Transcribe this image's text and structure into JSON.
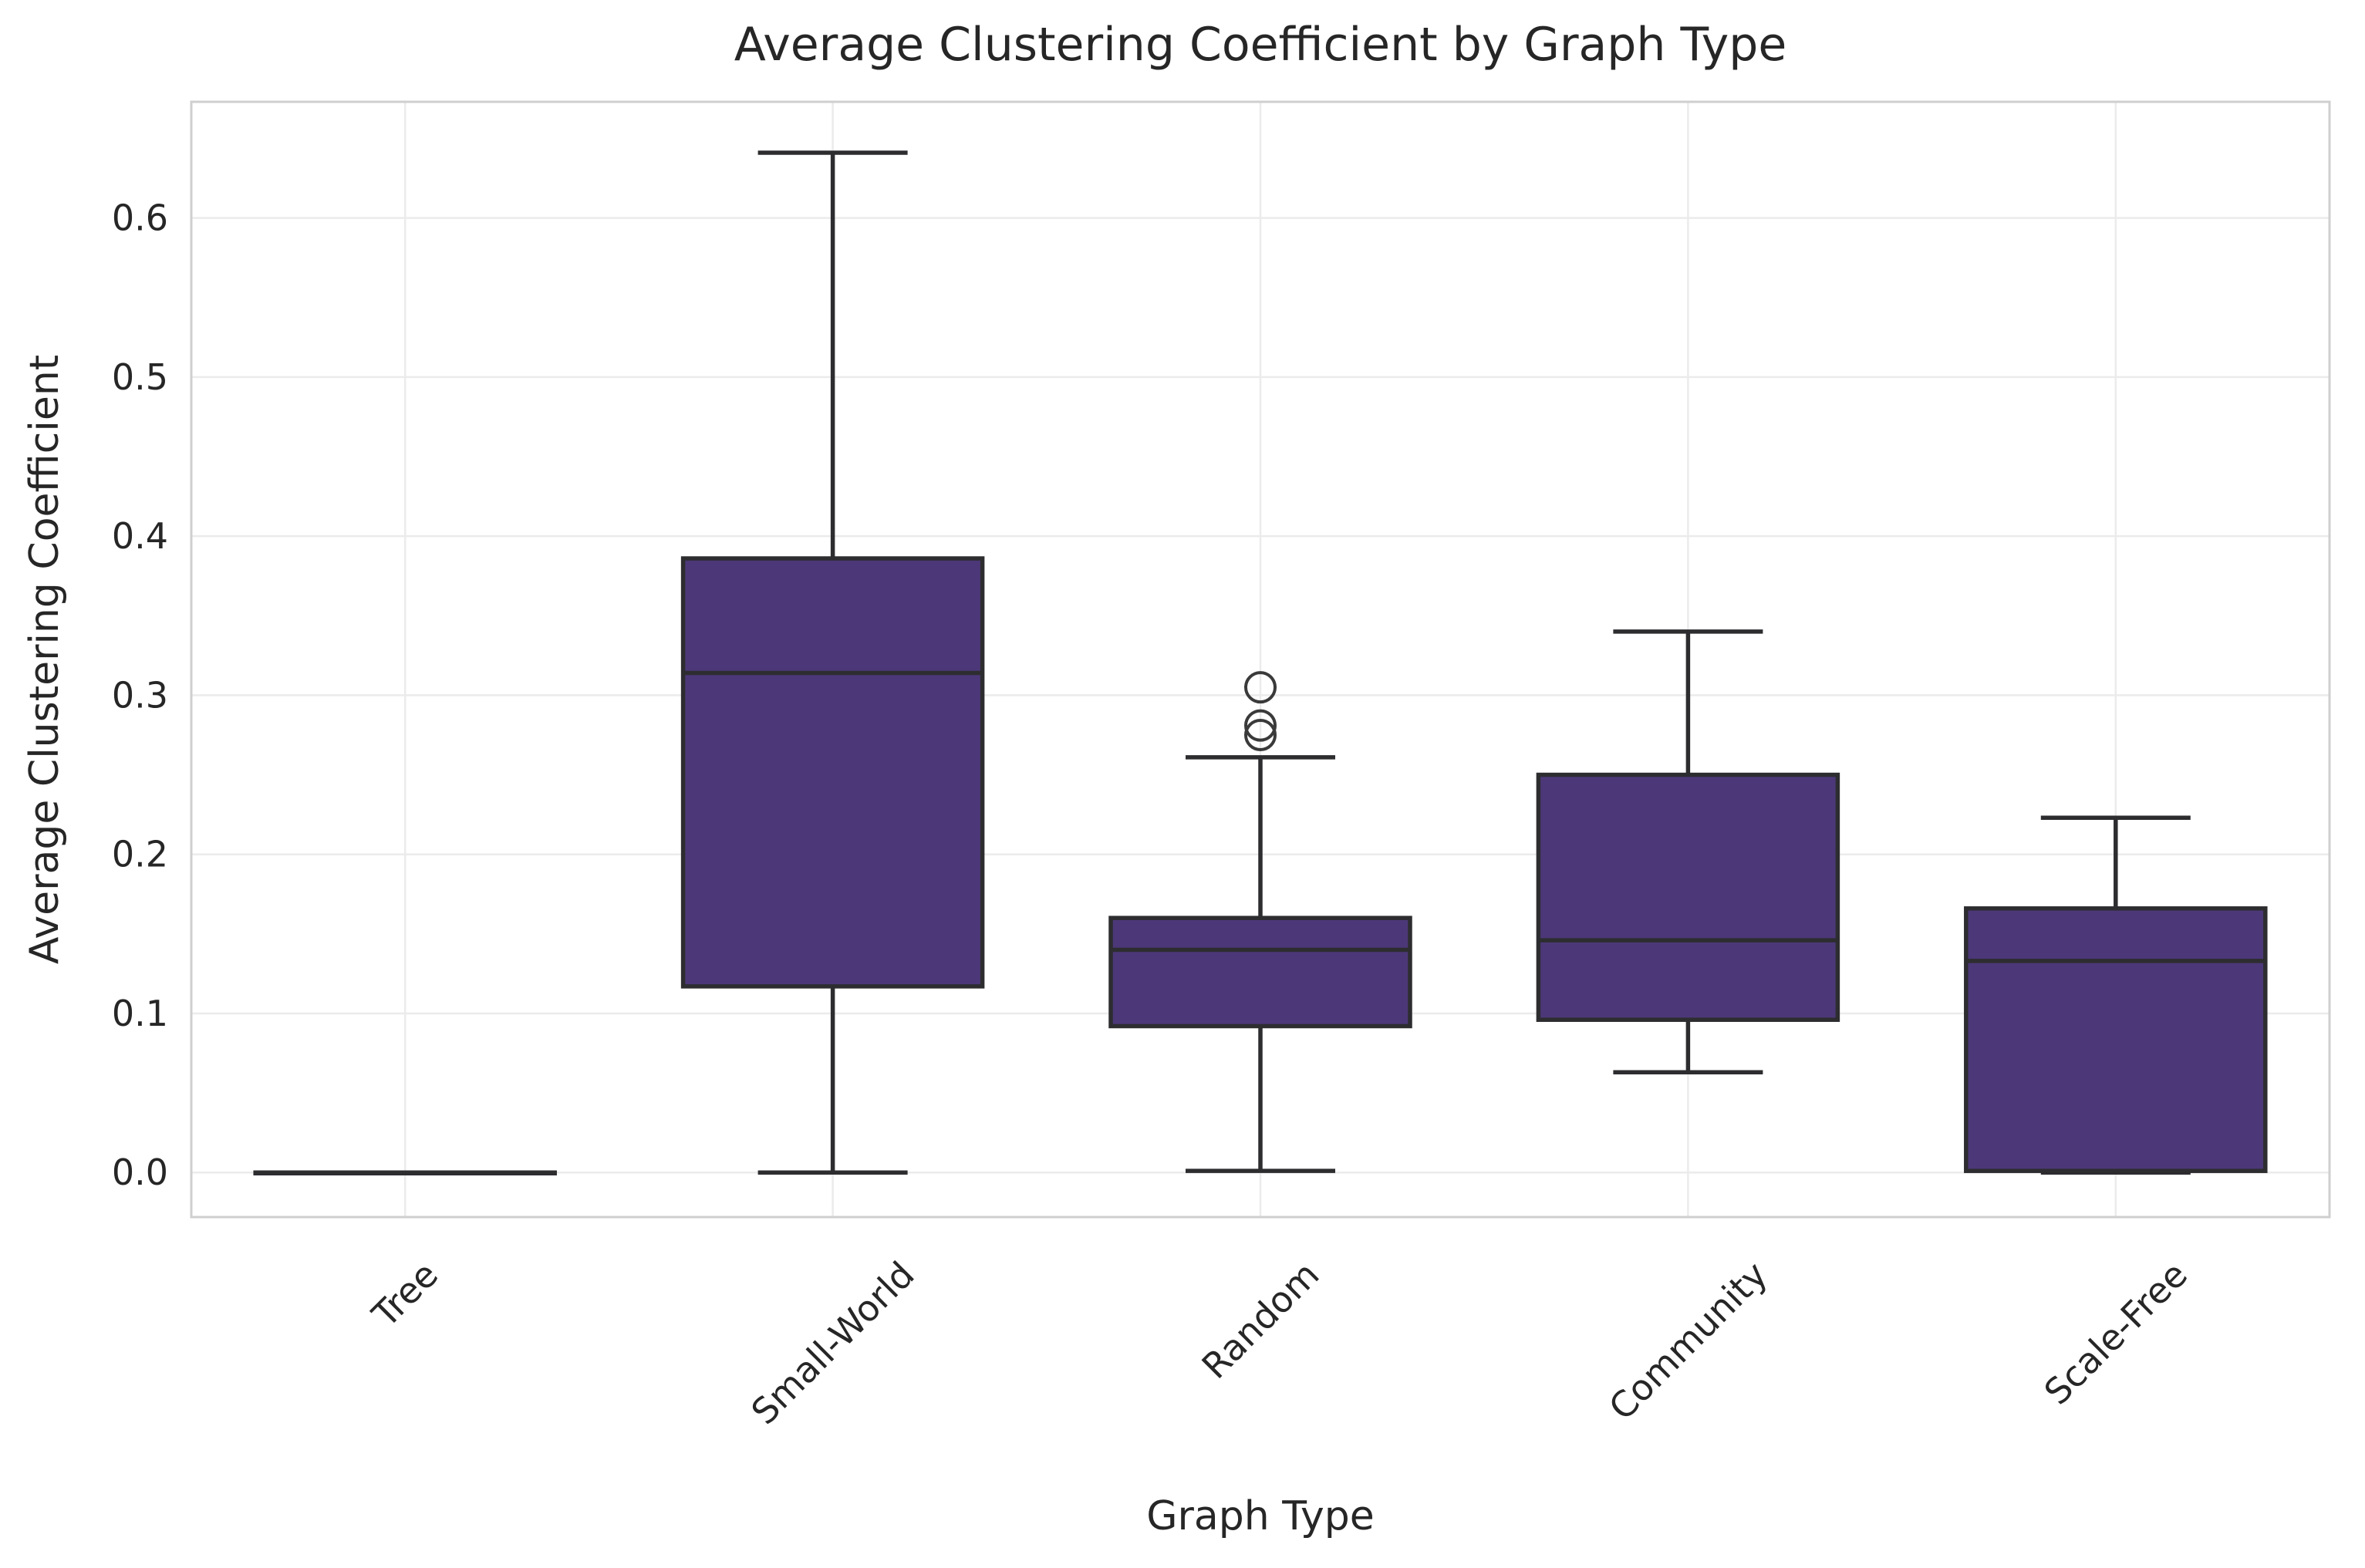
{
  "chart_data": {
    "type": "box",
    "title": "Average Clustering Coefficient by Graph Type",
    "xlabel": "Graph Type",
    "ylabel": "Average Clustering Coefficient",
    "categories": [
      "Tree",
      "Small-World",
      "Random",
      "Community",
      "Scale-Free"
    ],
    "ytick_labels": [
      "0.0",
      "0.1",
      "0.2",
      "0.3",
      "0.4",
      "0.5",
      "0.6"
    ],
    "yticks": [
      0.0,
      0.1,
      0.2,
      0.3,
      0.4,
      0.5,
      0.6
    ],
    "ylim": [
      -0.028,
      0.673
    ],
    "grid": true,
    "legend": "none",
    "boxes": [
      {
        "category": "Tree",
        "whislo": 0.0,
        "q1": 0.0,
        "med": 0.0,
        "q3": 0.0,
        "whishi": 0.0,
        "fliers": []
      },
      {
        "category": "Small-World",
        "whislo": 0.0,
        "q1": 0.117,
        "med": 0.314,
        "q3": 0.386,
        "whishi": 0.641,
        "fliers": []
      },
      {
        "category": "Random",
        "whislo": 0.001,
        "q1": 0.092,
        "med": 0.14,
        "q3": 0.16,
        "whishi": 0.261,
        "fliers": [
          0.275,
          0.281,
          0.305
        ]
      },
      {
        "category": "Community",
        "whislo": 0.063,
        "q1": 0.096,
        "med": 0.146,
        "q3": 0.25,
        "whishi": 0.34,
        "fliers": []
      },
      {
        "category": "Scale-Free",
        "whislo": 0.0,
        "q1": 0.001,
        "med": 0.133,
        "q3": 0.166,
        "whishi": 0.223,
        "fliers": []
      }
    ],
    "colors": {
      "box_fill": "#4c3878",
      "box_edge": "#2d2d30",
      "median": "#2d2d30",
      "whisker": "#2d2d30",
      "flier_edge": "#3a3a3a",
      "grid": "#ebebeb",
      "spine": "#cfcfcf",
      "text": "#262626",
      "background": "#ffffff"
    }
  }
}
